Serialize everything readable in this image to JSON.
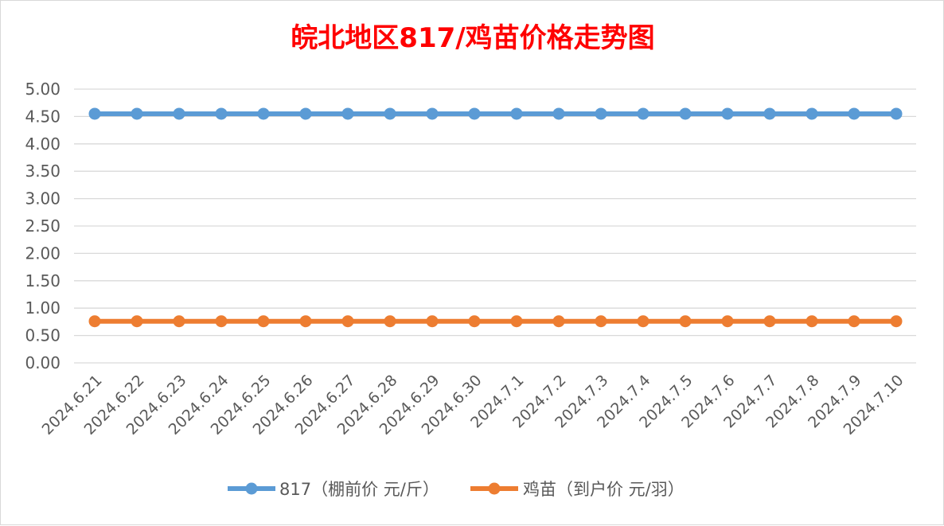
{
  "colors": {
    "series_817": "#5B9BD5",
    "series_chick": "#ED7D31",
    "title": "#FF0000",
    "grid": "#D9D9D9",
    "axis_text": "#595959"
  },
  "chart_data": {
    "type": "line",
    "title": "皖北地区817/鸡苗价格走势图",
    "xlabel": "",
    "ylabel": "",
    "ylim": [
      0,
      5
    ],
    "ytick_step": 0.5,
    "yticks": [
      "0.00",
      "0.50",
      "1.00",
      "1.50",
      "2.00",
      "2.50",
      "3.00",
      "3.50",
      "4.00",
      "4.50",
      "5.00"
    ],
    "grid": true,
    "legend_position": "bottom",
    "categories": [
      "2024.6.21",
      "2024.6.22",
      "2024.6.23",
      "2024.6.24",
      "2024.6.25",
      "2024.6.26",
      "2024.6.27",
      "2024.6.28",
      "2024.6.29",
      "2024.6.30",
      "2024.7.1",
      "2024.7.2",
      "2024.7.3",
      "2024.7.4",
      "2024.7.5",
      "2024.7.6",
      "2024.7.7",
      "2024.7.8",
      "2024.7.9",
      "2024.7.10"
    ],
    "series": [
      {
        "name": "817（棚前价 元/斤）",
        "color": "#5B9BD5",
        "values": [
          4.55,
          4.55,
          4.55,
          4.55,
          4.55,
          4.55,
          4.55,
          4.55,
          4.55,
          4.55,
          4.55,
          4.55,
          4.55,
          4.55,
          4.55,
          4.55,
          4.55,
          4.55,
          4.55,
          4.55
        ]
      },
      {
        "name": "鸡苗（到户价 元/羽）",
        "color": "#ED7D31",
        "values": [
          0.76,
          0.76,
          0.76,
          0.76,
          0.76,
          0.76,
          0.76,
          0.76,
          0.76,
          0.76,
          0.76,
          0.76,
          0.76,
          0.76,
          0.76,
          0.76,
          0.76,
          0.76,
          0.76,
          0.76
        ]
      }
    ]
  }
}
